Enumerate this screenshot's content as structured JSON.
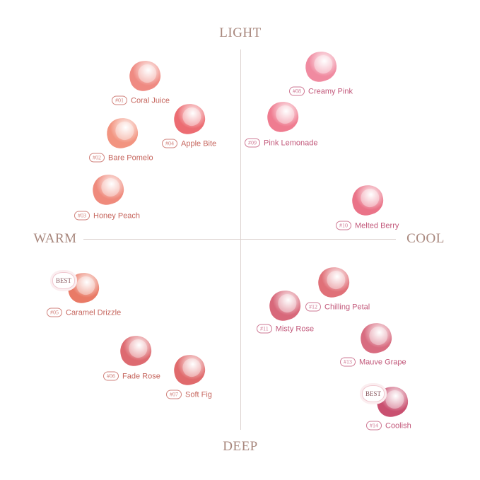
{
  "axes": {
    "top": "LIGHT",
    "bottom": "DEEP",
    "left": "WARM",
    "right": "COOL"
  },
  "badge_text": "BEST",
  "shades": [
    {
      "num": "#01",
      "name": "Coral Juice",
      "color": "#ef8a82",
      "tone": "warm",
      "quadrant": "light-warm",
      "best": false
    },
    {
      "num": "#02",
      "name": "Bare Pomelo",
      "color": "#f29480",
      "tone": "warm",
      "quadrant": "light-warm",
      "best": false
    },
    {
      "num": "#03",
      "name": "Honey Peach",
      "color": "#ef8a7c",
      "tone": "warm",
      "quadrant": "light-warm",
      "best": false
    },
    {
      "num": "#04",
      "name": "Apple Bite",
      "color": "#ec6c72",
      "tone": "warm",
      "quadrant": "light-warm",
      "best": false
    },
    {
      "num": "#05",
      "name": "Caramel Drizzle",
      "color": "#e97a66",
      "tone": "warm",
      "quadrant": "deep-warm",
      "best": true
    },
    {
      "num": "#06",
      "name": "Fade Rose",
      "color": "#dd6a70",
      "tone": "warm",
      "quadrant": "deep-warm",
      "best": false
    },
    {
      "num": "#07",
      "name": "Soft Fig",
      "color": "#e06a6c",
      "tone": "warm",
      "quadrant": "deep-warm",
      "best": false
    },
    {
      "num": "#08",
      "name": "Creamy Pink",
      "color": "#f08aa0",
      "tone": "cool",
      "quadrant": "light-cool",
      "best": false
    },
    {
      "num": "#09",
      "name": "Pink Lemonade",
      "color": "#ef7c90",
      "tone": "cool",
      "quadrant": "light-cool",
      "best": false
    },
    {
      "num": "#10",
      "name": "Melted Berry",
      "color": "#ea7388",
      "tone": "cool",
      "quadrant": "light-cool",
      "best": false
    },
    {
      "num": "#11",
      "name": "Misty Rose",
      "color": "#d8687a",
      "tone": "cool",
      "quadrant": "deep-cool",
      "best": false
    },
    {
      "num": "#12",
      "name": "Chilling Petal",
      "color": "#e07078",
      "tone": "cool",
      "quadrant": "deep-cool",
      "best": false
    },
    {
      "num": "#13",
      "name": "Mauve Grape",
      "color": "#d86c80",
      "tone": "cool",
      "quadrant": "deep-cool",
      "best": false
    },
    {
      "num": "#14",
      "name": "Coolish",
      "color": "#c95070",
      "tone": "cool",
      "quadrant": "deep-cool",
      "best": true
    }
  ]
}
